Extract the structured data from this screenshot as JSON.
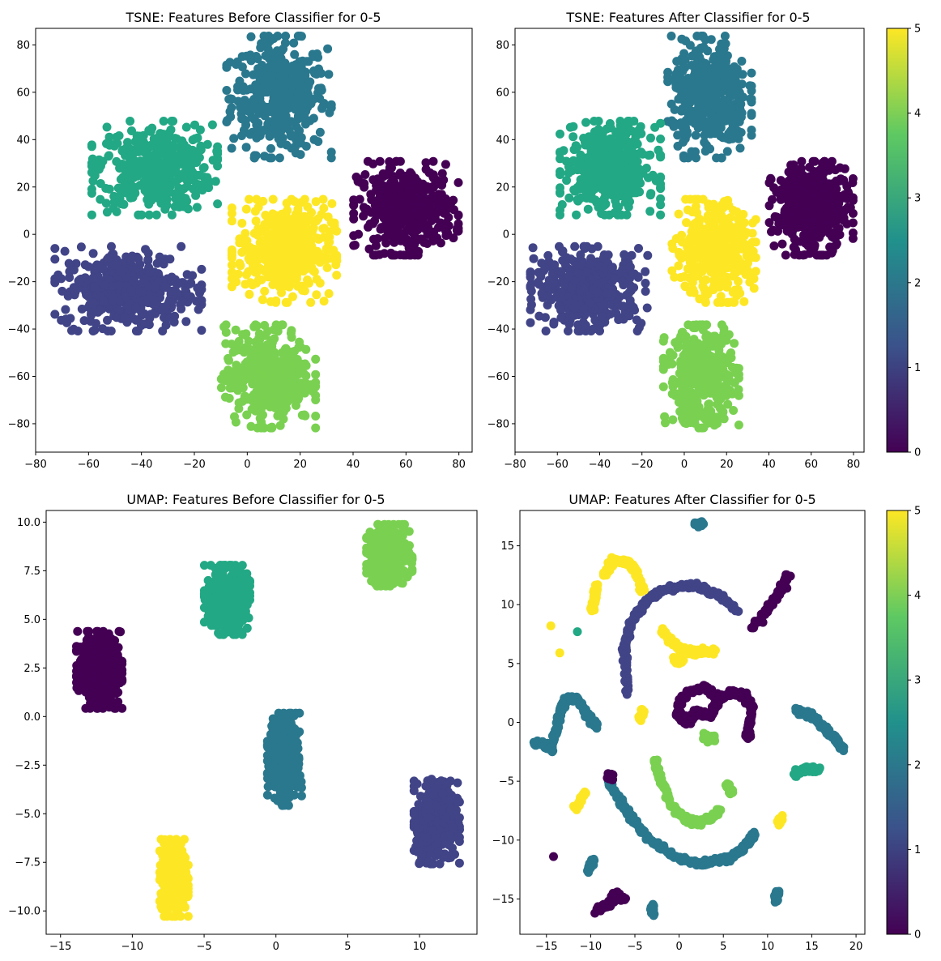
{
  "colormap": {
    "name": "viridis",
    "colors": [
      "#440154",
      "#3b528b",
      "#21918c",
      "#5ec962",
      "#fde725"
    ],
    "class_colors": {
      "0": "#440154",
      "1": "#414487",
      "2": "#2a788e",
      "3": "#22a884",
      "4": "#7ad151",
      "5": "#fde725"
    }
  },
  "chart_data": [
    {
      "type": "scatter",
      "title": "TSNE: Features Before Classifier for 0-5",
      "xlim": [
        -80,
        85
      ],
      "ylim": [
        -92,
        87
      ],
      "xticks": [
        -80,
        -60,
        -40,
        -20,
        0,
        20,
        40,
        60,
        80
      ],
      "yticks": [
        -80,
        -60,
        -40,
        -20,
        0,
        20,
        40,
        60,
        80
      ],
      "xticklabels": [
        "−80",
        "−60",
        "−40",
        "−20",
        "0",
        "20",
        "40",
        "60",
        "80"
      ],
      "yticklabels": [
        "−80",
        "−60",
        "−40",
        "−20",
        "0",
        "20",
        "40",
        "60",
        "80"
      ],
      "colorbar": false,
      "clusters": [
        {
          "class": 2,
          "cx": 12,
          "cy": 58,
          "sx": 10,
          "sy": 13
        },
        {
          "class": 3,
          "cx": -35,
          "cy": 28,
          "sx": 12,
          "sy": 10
        },
        {
          "class": 0,
          "cx": 60,
          "cy": 11,
          "sx": 10,
          "sy": 10
        },
        {
          "class": 5,
          "cx": 14,
          "cy": -7,
          "sx": 10,
          "sy": 11
        },
        {
          "class": 1,
          "cx": -45,
          "cy": -23,
          "sx": 14,
          "sy": 9
        },
        {
          "class": 4,
          "cx": 8,
          "cy": -60,
          "sx": 9,
          "sy": 11
        }
      ]
    },
    {
      "type": "scatter",
      "title": "TSNE: Features After Classifier for 0-5",
      "xlim": [
        -80,
        85
      ],
      "ylim": [
        -92,
        87
      ],
      "xticks": [
        -80,
        -60,
        -40,
        -20,
        0,
        20,
        40,
        60,
        80
      ],
      "yticks": [
        -80,
        -60,
        -40,
        -20,
        0,
        20,
        40,
        60,
        80
      ],
      "xticklabels": [
        "−80",
        "−60",
        "−40",
        "−20",
        "0",
        "20",
        "40",
        "60",
        "80"
      ],
      "yticklabels": [
        "−80",
        "−60",
        "−40",
        "−20",
        "0",
        "20",
        "40",
        "60",
        "80"
      ],
      "colorbar": true,
      "clusters": [
        {
          "class": 2,
          "cx": 12,
          "cy": 58,
          "sx": 10,
          "sy": 13
        },
        {
          "class": 3,
          "cx": -35,
          "cy": 28,
          "sx": 12,
          "sy": 10
        },
        {
          "class": 0,
          "cx": 60,
          "cy": 11,
          "sx": 10,
          "sy": 10
        },
        {
          "class": 5,
          "cx": 14,
          "cy": -7,
          "sx": 10,
          "sy": 11
        },
        {
          "class": 1,
          "cx": -45,
          "cy": -23,
          "sx": 14,
          "sy": 9
        },
        {
          "class": 4,
          "cx": 8,
          "cy": -60,
          "sx": 9,
          "sy": 11
        }
      ]
    },
    {
      "type": "scatter",
      "title": "UMAP: Features Before Classifier for 0-5",
      "xlim": [
        -16,
        14
      ],
      "ylim": [
        -11.2,
        10.6
      ],
      "xticks": [
        -15,
        -10,
        -5,
        0,
        5,
        10
      ],
      "yticks": [
        -10.0,
        -7.5,
        -5.0,
        -2.5,
        0.0,
        2.5,
        5.0,
        7.5,
        10.0
      ],
      "xticklabels": [
        "−15",
        "−10",
        "−5",
        "0",
        "5",
        "10"
      ],
      "yticklabels": [
        "−10.0",
        "−7.5",
        "−5.0",
        "−2.5",
        "0.0",
        "2.5",
        "5.0",
        "7.5",
        "10.0"
      ],
      "colorbar": false,
      "clusters": [
        {
          "class": 4,
          "cx": 7.9,
          "cy": 8.3,
          "sx": 0.8,
          "sy": 0.8
        },
        {
          "class": 3,
          "cx": -3.4,
          "cy": 6.0,
          "sx": 0.8,
          "sy": 0.9
        },
        {
          "class": 0,
          "cx": -12.3,
          "cy": 2.4,
          "sx": 0.8,
          "sy": 1.0
        },
        {
          "class": 2,
          "cx": 0.6,
          "cy": -2.2,
          "sx": 0.6,
          "sy": 1.2
        },
        {
          "class": 1,
          "cx": 11.2,
          "cy": -5.4,
          "sx": 0.8,
          "sy": 1.1
        },
        {
          "class": 5,
          "cx": -7.1,
          "cy": -8.3,
          "sx": 0.5,
          "sy": 1.0
        }
      ]
    },
    {
      "type": "scatter",
      "title": "UMAP: Features After Classifier for 0-5",
      "xlim": [
        -18,
        21
      ],
      "ylim": [
        -18,
        18
      ],
      "xticks": [
        -15,
        -10,
        -5,
        0,
        5,
        10,
        15,
        20
      ],
      "yticks": [
        -15,
        -10,
        -5,
        0,
        5,
        10,
        15
      ],
      "xticklabels": [
        "−15",
        "−10",
        "−5",
        "0",
        "5",
        "10",
        "15",
        "20"
      ],
      "yticklabels": [
        "−15",
        "−10",
        "−5",
        "0",
        "5",
        "10",
        "15"
      ],
      "colorbar": true,
      "curves": [
        {
          "class": 1,
          "points": [
            [
              -5.8,
              2.5
            ],
            [
              -6.2,
              6
            ],
            [
              -5.5,
              8.5
            ],
            [
              -3.5,
              10.5
            ],
            [
              -1,
              11.5
            ],
            [
              2,
              11.6
            ],
            [
              4.5,
              10.8
            ],
            [
              6.5,
              9.5
            ]
          ]
        },
        {
          "class": 5,
          "points": [
            [
              -8.5,
              12.5
            ],
            [
              -7.5,
              13.8
            ],
            [
              -5.8,
              13.6
            ],
            [
              -4.8,
              12.8
            ],
            [
              -4.2,
              11.2
            ]
          ]
        },
        {
          "class": 5,
          "points": [
            [
              -9.8,
              9.5
            ],
            [
              -9.6,
              10.5
            ],
            [
              -9.3,
              11.5
            ]
          ]
        },
        {
          "class": 5,
          "points": [
            [
              -2,
              7.8
            ],
            [
              -1,
              7
            ],
            [
              0,
              6.3
            ],
            [
              2,
              6
            ],
            [
              4,
              6
            ]
          ]
        },
        {
          "class": 5,
          "points": [
            [
              -0.6,
              5.2
            ],
            [
              0.5,
              5.2
            ]
          ]
        },
        {
          "class": 5,
          "points": [
            [
              -4.5,
              0.3
            ],
            [
              -4,
              1
            ]
          ]
        },
        {
          "class": 0,
          "points": [
            [
              -0.2,
              1.4
            ],
            [
              1,
              2.5
            ],
            [
              3,
              3
            ],
            [
              4.5,
              2
            ],
            [
              3.5,
              0.6
            ],
            [
              2,
              0.9
            ],
            [
              0.8,
              0
            ],
            [
              -0.2,
              0.8
            ]
          ]
        },
        {
          "class": 0,
          "points": [
            [
              4.5,
              2
            ],
            [
              6,
              2.5
            ],
            [
              7.5,
              2.3
            ],
            [
              8.2,
              1.2
            ],
            [
              7.8,
              -1
            ],
            [
              7.8,
              -1.3
            ]
          ]
        },
        {
          "class": 0,
          "points": [
            [
              8.2,
              8
            ],
            [
              10,
              9.6
            ],
            [
              11.5,
              11.2
            ],
            [
              12.3,
              12.6
            ]
          ]
        },
        {
          "class": 2,
          "points": [
            [
              -16.5,
              -1.8
            ],
            [
              -14.5,
              -2
            ],
            [
              -13.8,
              -0.5
            ],
            [
              -13.5,
              0.8
            ],
            [
              -12.8,
              2
            ],
            [
              -11.5,
              2
            ],
            [
              -10.5,
              0.6
            ],
            [
              -9.2,
              -0.4
            ]
          ]
        },
        {
          "class": 2,
          "points": [
            [
              -15.2,
              -1.8
            ],
            [
              -14.2,
              -2.4
            ]
          ]
        },
        {
          "class": 2,
          "points": [
            [
              -8,
              -5
            ],
            [
              -6,
              -7.5
            ],
            [
              -4,
              -9.5
            ],
            [
              -1,
              -11.2
            ],
            [
              2,
              -12
            ],
            [
              4,
              -11.8
            ],
            [
              6,
              -11.5
            ],
            [
              7.8,
              -10.2
            ],
            [
              8.5,
              -9.5
            ]
          ]
        },
        {
          "class": 2,
          "points": [
            [
              13.2,
              1
            ],
            [
              15,
              0.6
            ],
            [
              16.5,
              -0.5
            ],
            [
              17.8,
              -1.5
            ],
            [
              18.5,
              -2.2
            ]
          ]
        },
        {
          "class": 2,
          "points": [
            [
              -10.3,
              -12.6
            ],
            [
              -9.7,
              -11.8
            ]
          ]
        },
        {
          "class": 2,
          "points": [
            [
              1.8,
              16.8
            ],
            [
              2.6,
              16.9
            ]
          ]
        },
        {
          "class": 2,
          "points": [
            [
              -3,
              -15.5
            ],
            [
              -3,
              -16.2
            ]
          ]
        },
        {
          "class": 2,
          "points": [
            [
              10.9,
              -15.2
            ],
            [
              11.1,
              -14.4
            ]
          ]
        },
        {
          "class": 3,
          "points": [
            [
              13,
              -4.5
            ],
            [
              14.5,
              -3.9
            ],
            [
              15.8,
              -4
            ]
          ]
        },
        {
          "class": 4,
          "points": [
            [
              -2.8,
              -3.3
            ],
            [
              -2,
              -5
            ],
            [
              -1,
              -7
            ],
            [
              0.5,
              -8.2
            ],
            [
              2,
              -8.5
            ],
            [
              3.5,
              -8.2
            ],
            [
              4.5,
              -7.5
            ]
          ]
        },
        {
          "class": 4,
          "points": [
            [
              2.8,
              -1.2
            ],
            [
              4,
              -1.4
            ]
          ]
        },
        {
          "class": 4,
          "points": [
            [
              5.5,
              -5.3
            ],
            [
              5.9,
              -6
            ]
          ]
        },
        {
          "class": 5,
          "points": [
            [
              -11.8,
              -7.3
            ],
            [
              -10.6,
              -6
            ]
          ]
        },
        {
          "class": 5,
          "points": [
            [
              11.3,
              -8.6
            ],
            [
              11.6,
              -8.1
            ]
          ]
        },
        {
          "class": 0,
          "points": [
            [
              -9.5,
              -16
            ],
            [
              -7.5,
              -15.2
            ],
            [
              -7.2,
              -14.6
            ],
            [
              -6.2,
              -15
            ]
          ]
        },
        {
          "class": 0,
          "points": [
            [
              -8,
              -4.5
            ],
            [
              -7.5,
              -4.8
            ]
          ]
        }
      ],
      "isolated": [
        {
          "class": 5,
          "x": -14.5,
          "y": 8.2
        },
        {
          "class": 5,
          "x": -13.5,
          "y": 5.9
        },
        {
          "class": 3,
          "x": -11.5,
          "y": 7.7
        },
        {
          "class": 0,
          "x": -14.2,
          "y": -11.4
        },
        {
          "class": 5,
          "x": -9.8,
          "y": 9.6
        }
      ]
    }
  ],
  "colorbars": [
    {
      "ticks": [
        0,
        1,
        2,
        3,
        4,
        5
      ],
      "ticklabels": [
        "0",
        "1",
        "2",
        "3",
        "4",
        "5"
      ]
    },
    {
      "ticks": [
        0,
        1,
        2,
        3,
        4,
        5
      ],
      "ticklabels": [
        "0",
        "1",
        "2",
        "3",
        "4",
        "5"
      ]
    }
  ]
}
